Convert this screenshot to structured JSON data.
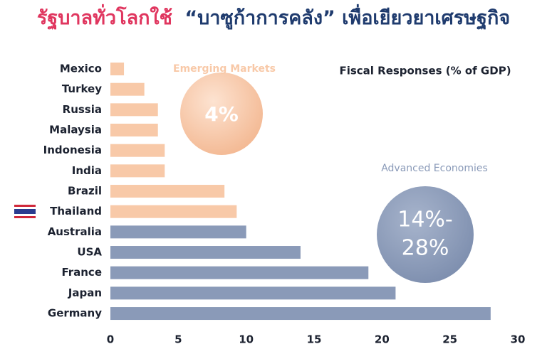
{
  "chart_data": {
    "type": "bar",
    "orientation": "horizontal",
    "title": [
      "รัฐบาลทั่วโลกใช้",
      "“บาซูก้าการคลัง” เพื่อเยียวยาเศรษฐกิจ"
    ],
    "title_colors": [
      "#e0365f",
      "#1f3b6e"
    ],
    "subtitle": "Fiscal Responses (% of GDP)",
    "categories": [
      "Mexico",
      "Turkey",
      "Russia",
      "Malaysia",
      "Indonesia",
      "India",
      "Brazil",
      "Thailand",
      "Australia",
      "USA",
      "France",
      "Japan",
      "Germany"
    ],
    "values": [
      1,
      2.5,
      3.5,
      3.5,
      4,
      4,
      8.4,
      9.3,
      10,
      14,
      19,
      21,
      28
    ],
    "colors": [
      "#f8c9a8",
      "#f8c9a8",
      "#f8c9a8",
      "#f8c9a8",
      "#f8c9a8",
      "#f8c9a8",
      "#f8c9a8",
      "#f8c9a8",
      "#8a9ab8",
      "#8a9ab8",
      "#8a9ab8",
      "#8a9ab8",
      "#8a9ab8"
    ],
    "xlim": [
      0,
      30
    ],
    "xticks": [
      0,
      5,
      10,
      15,
      20,
      25,
      30
    ],
    "grid": false,
    "annotations": {
      "emerging": {
        "label": "Emerging Markets",
        "value": "4%",
        "color": "#f8c9a8"
      },
      "advanced": {
        "label": "Advanced Economies",
        "value": [
          "14%-",
          "28%"
        ],
        "color": "#8a9ab8"
      }
    }
  }
}
